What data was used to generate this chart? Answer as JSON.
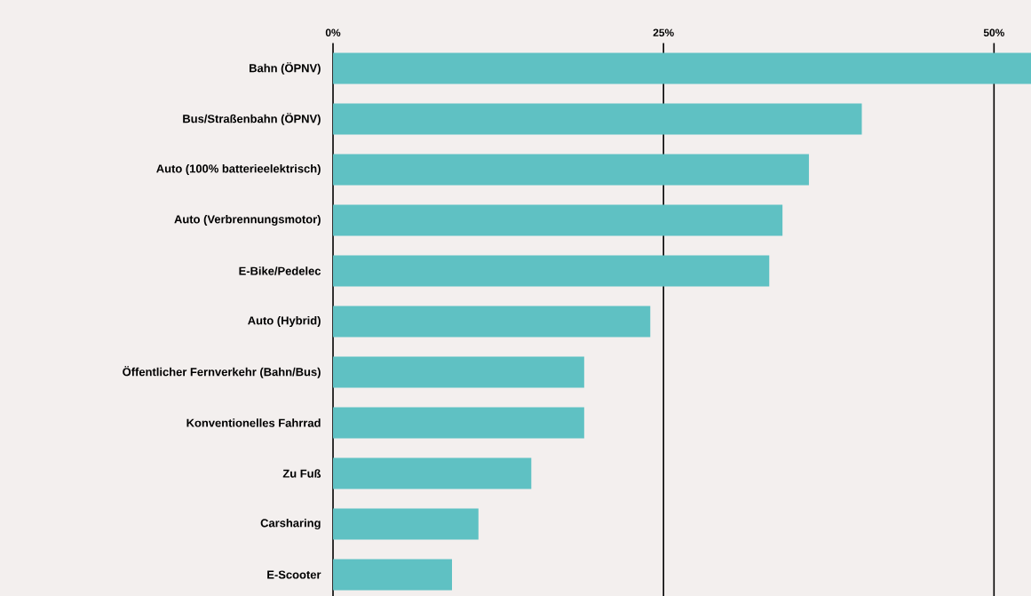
{
  "chart_data": {
    "type": "bar",
    "orientation": "horizontal",
    "categories": [
      "Bahn (ÖPNV)",
      "Bus/Straßenbahn (ÖPNV)",
      "Auto (100% batterieelektrisch)",
      "Auto (Verbrennungsmotor)",
      "E-Bike/Pedelec",
      "Auto (Hybrid)",
      "Öffentlicher Fernverkehr (Bahn/Bus)",
      "Konventionelles Fahrrad",
      "Zu Fuß",
      "Carsharing",
      "E-Scooter"
    ],
    "values": [
      52.8,
      40,
      36,
      34,
      33,
      24,
      19,
      19,
      15,
      11,
      9
    ],
    "color": "#5fc1c3",
    "xlim": [
      0,
      52.8
    ],
    "xticks": [
      {
        "value": 0,
        "label": "0%"
      },
      {
        "value": 25,
        "label": "25%"
      },
      {
        "value": 50,
        "label": "50%"
      }
    ],
    "grid": "x"
  }
}
